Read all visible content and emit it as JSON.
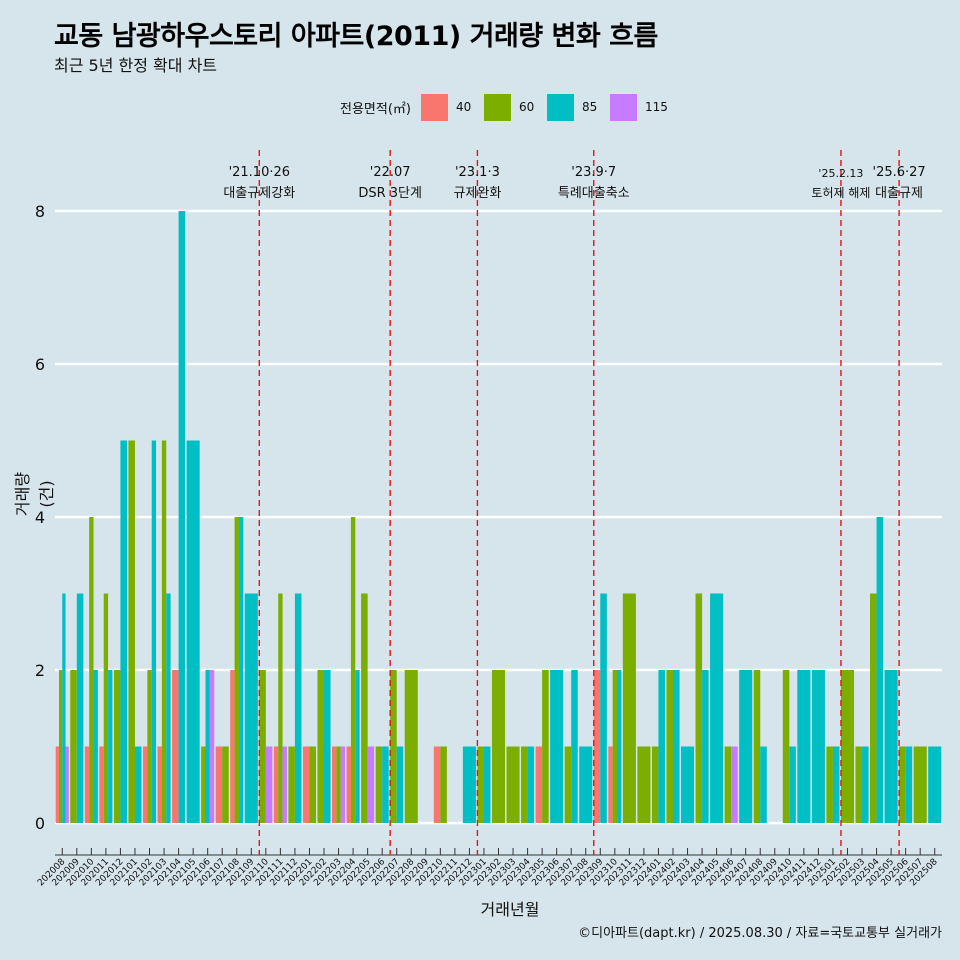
{
  "title": "교동 남광하우스토리 아파트(2011) 거래량 변화 흐름",
  "subtitle": "최근 5년 한정 확대 차트",
  "legend": {
    "title": "전용면적(㎡)",
    "items": [
      {
        "label": "40",
        "color": "#f8766d"
      },
      {
        "label": "60",
        "color": "#7cae00"
      },
      {
        "label": "85",
        "color": "#00bfc4"
      },
      {
        "label": "115",
        "color": "#c77cff"
      }
    ]
  },
  "caption": "©디아파트(dapt.kr) / 2025.08.30 / 자료=국토교통부 실거래가",
  "chart_data": {
    "type": "bar",
    "xlabel": "거래년월",
    "ylabel": "거래량(건)",
    "ylim": [
      0,
      8
    ],
    "yticks": [
      0,
      2,
      4,
      6,
      8
    ],
    "grid": true,
    "legend_position": "top",
    "categories": [
      "202008",
      "202009",
      "202010",
      "202011",
      "202012",
      "202101",
      "202102",
      "202103",
      "202104",
      "202105",
      "202106",
      "202107",
      "202108",
      "202109",
      "202110",
      "202111",
      "202112",
      "202201",
      "202202",
      "202203",
      "202204",
      "202205",
      "202206",
      "202207",
      "202208",
      "202209",
      "202210",
      "202211",
      "202212",
      "202301",
      "202302",
      "202303",
      "202304",
      "202305",
      "202306",
      "202307",
      "202308",
      "202309",
      "202310",
      "202311",
      "202312",
      "202401",
      "202402",
      "202403",
      "202404",
      "202405",
      "202406",
      "202407",
      "202408",
      "202409",
      "202410",
      "202411",
      "202412",
      "202501",
      "202502",
      "202503",
      "202504",
      "202505",
      "202506",
      "202507",
      "202508"
    ],
    "series": [
      {
        "name": "40",
        "color": "#f8766d",
        "values": [
          1,
          0,
          1,
          1,
          0,
          0,
          1,
          1,
          2,
          0,
          0,
          1,
          2,
          0,
          0,
          1,
          0,
          1,
          0,
          1,
          1,
          0,
          0,
          0,
          0,
          0,
          1,
          0,
          0,
          0,
          0,
          0,
          0,
          1,
          0,
          0,
          0,
          2,
          1,
          0,
          0,
          0,
          0,
          0,
          0,
          0,
          0,
          0,
          0,
          0,
          0,
          0,
          0,
          0,
          0,
          0,
          0,
          0,
          0,
          0,
          0
        ]
      },
      {
        "name": "60",
        "color": "#7cae00",
        "values": [
          2,
          2,
          4,
          3,
          2,
          5,
          2,
          5,
          0,
          0,
          1,
          1,
          4,
          0,
          2,
          3,
          1,
          1,
          2,
          1,
          4,
          3,
          1,
          2,
          2,
          0,
          1,
          0,
          0,
          1,
          2,
          1,
          1,
          2,
          0,
          1,
          0,
          0,
          2,
          3,
          1,
          1,
          2,
          0,
          3,
          0,
          1,
          0,
          2,
          0,
          2,
          0,
          0,
          1,
          2,
          1,
          3,
          0,
          1,
          1,
          0
        ]
      },
      {
        "name": "85",
        "color": "#00bfc4",
        "values": [
          3,
          3,
          2,
          2,
          5,
          1,
          5,
          3,
          8,
          5,
          2,
          0,
          4,
          3,
          0,
          0,
          3,
          0,
          2,
          0,
          2,
          0,
          1,
          1,
          0,
          0,
          0,
          0,
          1,
          1,
          0,
          0,
          1,
          0,
          2,
          2,
          1,
          3,
          2,
          0,
          0,
          2,
          2,
          1,
          2,
          3,
          0,
          2,
          1,
          0,
          1,
          2,
          2,
          1,
          0,
          1,
          4,
          2,
          1,
          0,
          1
        ]
      },
      {
        "name": "115",
        "color": "#c77cff",
        "values": [
          1,
          0,
          0,
          0,
          0,
          0,
          0,
          0,
          0,
          0,
          2,
          0,
          0,
          0,
          1,
          1,
          0,
          0,
          0,
          1,
          0,
          1,
          0,
          0,
          0,
          0,
          0,
          0,
          0,
          0,
          0,
          0,
          0,
          0,
          0,
          0,
          0,
          0,
          0,
          0,
          0,
          0,
          0,
          0,
          0,
          0,
          1,
          0,
          0,
          0,
          0,
          0,
          0,
          0,
          0,
          0,
          0,
          0,
          0,
          0,
          0
        ]
      }
    ],
    "annotations": [
      {
        "at": "202110",
        "date": "'21.10·26",
        "label": "대출규제강화"
      },
      {
        "at": "202207",
        "date": "'22.07",
        "label": "DSR 3단계"
      },
      {
        "at": "202301",
        "date": "'23.1·3",
        "label": "규제완화"
      },
      {
        "at": "202309",
        "date": "'23.9·7",
        "label": "특례대출축소"
      },
      {
        "at": "202502",
        "date": "'25.2.13",
        "label": "토허제 해제"
      },
      {
        "at": "202506",
        "date": "'25.6·27",
        "label": "대출규제"
      }
    ]
  }
}
